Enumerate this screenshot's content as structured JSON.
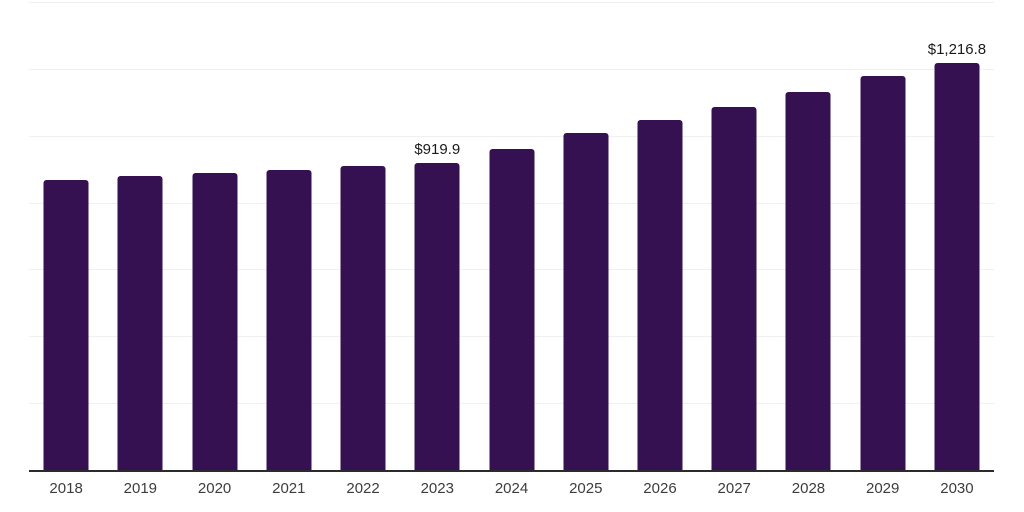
{
  "chart_data": {
    "type": "bar",
    "title": "",
    "xlabel": "",
    "ylabel": "",
    "categories": [
      "2018",
      "2019",
      "2020",
      "2021",
      "2022",
      "2023",
      "2024",
      "2025",
      "2026",
      "2027",
      "2028",
      "2029",
      "2030"
    ],
    "values": [
      867.6,
      879.4,
      887.1,
      898.1,
      909.1,
      919.9,
      961.4,
      1007.1,
      1046.7,
      1087.2,
      1129.8,
      1177.2,
      1216.8
    ],
    "bar_labels": {
      "2023": "$919.9",
      "2030": "$1,216.8"
    },
    "ylim": [
      0,
      1400
    ],
    "gridline_step": 200,
    "grid": true,
    "legend": false,
    "y_axis_ticks_visible": false,
    "bar_color": "#351152",
    "grid_color": "#f0f0f0",
    "axis_color": "#2b2b2b",
    "tick_label_color": "#3d3d3d",
    "data_label_color": "#1a1a1a"
  }
}
